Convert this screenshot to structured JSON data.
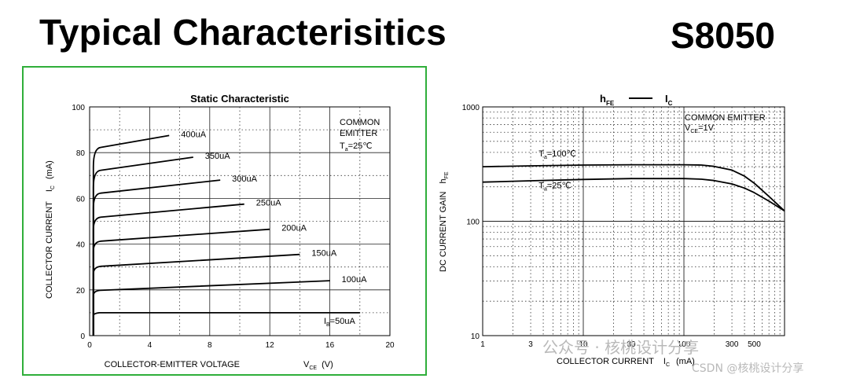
{
  "header": {
    "title": "Typical Characterisitics",
    "part_number": "S8050"
  },
  "chart_data": [
    {
      "type": "line",
      "title": "Static Characteristic",
      "xlabel": "COLLECTOR-EMITTER VOLTAGE",
      "xlabel_sym": "V",
      "xlabel_sub": "CE",
      "xlabel_unit": "(V)",
      "ylabel": "COLLECTOR CURRENT",
      "ylabel_sym": "I",
      "ylabel_sub": "C",
      "ylabel_unit": "(mA)",
      "xlim": [
        0,
        20
      ],
      "ylim": [
        0,
        100
      ],
      "x_ticks": [
        "0",
        "4",
        "8",
        "12",
        "16",
        "20"
      ],
      "y_ticks": [
        "0",
        "20",
        "40",
        "60",
        "80",
        "100"
      ],
      "grid": true,
      "note_line1": "COMMON",
      "note_line2": "EMITTER",
      "note_sym": "T",
      "note_sub": "a",
      "note_val": "=25℃",
      "series": [
        {
          "name": "I",
          "name_sub": "B",
          "name_val": "=50uA",
          "label": "I B=50uA",
          "x": [
            0.25,
            0.4,
            18
          ],
          "y": [
            0,
            9.7,
            10
          ]
        },
        {
          "name": "100uA",
          "label": "100uA",
          "x": [
            0.25,
            0.45,
            16
          ],
          "y": [
            0,
            19.5,
            24
          ]
        },
        {
          "name": "150uA",
          "label": "150uA",
          "x": [
            0.25,
            0.5,
            14
          ],
          "y": [
            0,
            30,
            35.5
          ]
        },
        {
          "name": "200uA",
          "label": "200uA",
          "x": [
            0.25,
            0.5,
            12
          ],
          "y": [
            0,
            41,
            46.5
          ]
        },
        {
          "name": "250uA",
          "label": "250uA",
          "x": [
            0.25,
            0.5,
            10.3
          ],
          "y": [
            0,
            51.5,
            57.5
          ]
        },
        {
          "name": "300uA",
          "label": "300uA",
          "x": [
            0.25,
            0.5,
            8.7
          ],
          "y": [
            0,
            62,
            68
          ]
        },
        {
          "name": "350uA",
          "label": "350uA",
          "x": [
            0.25,
            0.5,
            6.9
          ],
          "y": [
            0,
            72,
            78
          ]
        },
        {
          "name": "400uA",
          "label": "400uA",
          "x": [
            0.25,
            0.5,
            5.3
          ],
          "y": [
            0,
            82,
            87.5
          ]
        }
      ]
    },
    {
      "type": "line",
      "title_left": "h",
      "title_left_sub": "FE",
      "title_right": "I",
      "title_right_sub": "C",
      "xlabel": "COLLECTOR CURRENT",
      "xlabel_sym": "I",
      "xlabel_sub": "C",
      "xlabel_unit": "(mA)",
      "ylabel": "DC CURRENT GAIN",
      "ylabel_sym": "h",
      "ylabel_sub": "FE",
      "x_scale": "log",
      "y_scale": "log",
      "xlim": [
        1,
        1000
      ],
      "ylim": [
        10,
        1000
      ],
      "x_ticks": [
        "1",
        "3",
        "10",
        "30",
        "100",
        "300",
        "500"
      ],
      "x_tick_values": [
        1,
        3,
        10,
        30,
        100,
        300,
        500
      ],
      "y_ticks": [
        "10",
        "100",
        "1000"
      ],
      "y_tick_values": [
        10,
        100,
        1000
      ],
      "grid": true,
      "note_line1": "COMMON EMITTER",
      "note_sym": "V",
      "note_sub": "CE",
      "note_val": "=1V",
      "series": [
        {
          "name": "T",
          "name_sub": "a",
          "name_val": "=100℃",
          "x": [
            1,
            3,
            10,
            30,
            100,
            150,
            200,
            300,
            400,
            500,
            700,
            1000
          ],
          "y": [
            300,
            305,
            310,
            312,
            312,
            310,
            302,
            280,
            248,
            215,
            165,
            123
          ]
        },
        {
          "name": "T",
          "name_sub": "a",
          "name_val": "=25℃",
          "x": [
            1,
            3,
            10,
            30,
            100,
            150,
            200,
            300,
            400,
            500,
            700,
            1000
          ],
          "y": [
            220,
            226,
            232,
            236,
            236,
            233,
            227,
            212,
            195,
            178,
            150,
            123
          ]
        }
      ]
    }
  ],
  "watermark": {
    "line1": "公众号 · 核桃设计分享",
    "line2": "CSDN @核桃设计分享"
  }
}
